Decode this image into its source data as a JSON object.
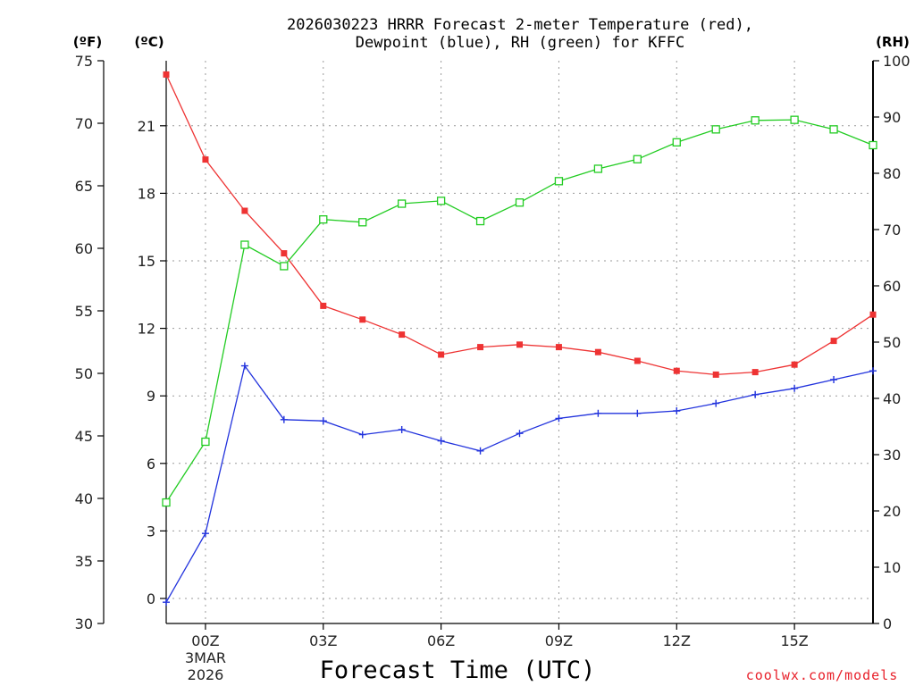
{
  "chart_data": {
    "type": "line",
    "title_line1": "2026030223 HRRR Forecast 2-meter Temperature (red),",
    "title_line2": "Dewpoint (blue), RH (green) for KFFC",
    "xlabel": "Forecast Time (UTC)",
    "credit": "coolwx.com/models",
    "date_label_1": "3MAR",
    "date_label_2": "2026",
    "unit_f": "(ºF)",
    "unit_c": "(ºC)",
    "unit_rh": "(RH)",
    "x_range": [
      -1,
      17
    ],
    "x_hours": [
      -1,
      0,
      1,
      2,
      3,
      4,
      5,
      6,
      7,
      8,
      9,
      10,
      11,
      12,
      13,
      14,
      15,
      16,
      17
    ],
    "x_ticks": [
      0,
      3,
      6,
      9,
      12,
      15
    ],
    "x_tick_labels": [
      "00Z",
      "03Z",
      "06Z",
      "09Z",
      "12Z",
      "15Z"
    ],
    "f_range": [
      30,
      75
    ],
    "f_ticks": [
      30,
      35,
      40,
      45,
      50,
      55,
      60,
      65,
      70,
      75
    ],
    "f_tick_labels": [
      "30",
      "35",
      "40",
      "45",
      "50",
      "55",
      "60",
      "65",
      "70",
      "75"
    ],
    "c_ticks": [
      0,
      3,
      6,
      9,
      12,
      15,
      18,
      21
    ],
    "c_tick_labels": [
      "0",
      "3",
      "6",
      "9",
      "12",
      "15",
      "18",
      "21"
    ],
    "rh_range": [
      0,
      100
    ],
    "rh_ticks": [
      0,
      10,
      20,
      30,
      40,
      50,
      60,
      70,
      80,
      90,
      100
    ],
    "rh_tick_labels": [
      "0",
      "10",
      "20",
      "30",
      "40",
      "50",
      "60",
      "70",
      "80",
      "90",
      "100"
    ],
    "series": [
      {
        "name": "Temperature",
        "units": "F",
        "color": "#ee3333",
        "marker": "filled-square",
        "values": [
          73.9,
          67.1,
          63.0,
          59.6,
          55.4,
          54.3,
          53.1,
          51.5,
          52.1,
          52.3,
          52.1,
          51.7,
          51.0,
          50.2,
          49.9,
          50.1,
          50.7,
          52.6,
          54.7
        ]
      },
      {
        "name": "Dewpoint",
        "units": "F",
        "color": "#2233dd",
        "marker": "plus",
        "values": [
          31.7,
          37.2,
          50.6,
          46.3,
          46.2,
          45.1,
          45.5,
          44.6,
          43.8,
          45.2,
          46.4,
          46.8,
          46.8,
          47.0,
          47.6,
          48.3,
          48.8,
          49.5,
          50.2
        ]
      },
      {
        "name": "RH",
        "units": "%",
        "color": "#22cc22",
        "marker": "hollow-square",
        "values": [
          21.5,
          32.3,
          67.3,
          63.5,
          71.8,
          71.3,
          74.6,
          75.1,
          71.5,
          74.8,
          78.6,
          80.8,
          82.5,
          85.5,
          87.8,
          89.4,
          89.5,
          87.8,
          85.0
        ]
      }
    ]
  }
}
